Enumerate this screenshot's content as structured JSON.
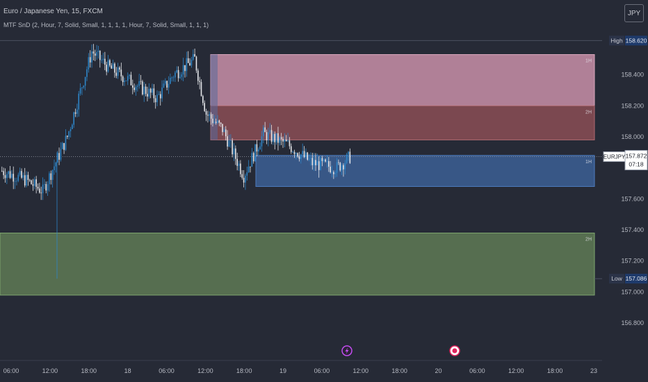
{
  "header": {
    "symbol_title": "Euro / Japanese Yen, 15, FXCM",
    "indicator_title": "MTF SnD (2, Hour, 7, Solid, Small, 1, 1, 1, 1, Hour, 7, Solid, Small, 1, 1, 1)",
    "currency": "JPY"
  },
  "colors": {
    "background": "#262a36",
    "up_candle": "#2e86c9",
    "down_candle": "#e6e8ec",
    "supply_zone_light": "#c98fa8",
    "supply_zone_dark": "#8b4d55",
    "demand_zone_blue": "#3c5f94",
    "demand_zone_green": "#5f7a55"
  },
  "chart_data": {
    "type": "candlestick",
    "y_axis_ticks": [
      158.4,
      158.2,
      158.0,
      157.6,
      157.4,
      157.2,
      157.0,
      156.8
    ],
    "y_axis_labels": [
      "158.400",
      "158.200",
      "158.000",
      "157.600",
      "157.400",
      "157.200",
      "157.000",
      "156.800"
    ],
    "ylim": [
      156.72,
      158.68
    ],
    "x_axis_labels": [
      "06:00",
      "12:00",
      "18:00",
      "18",
      "06:00",
      "12:00",
      "18:00",
      "19",
      "06:00",
      "12:00",
      "18:00",
      "20",
      "06:00",
      "12:00",
      "18:00",
      "23"
    ],
    "high_marker": {
      "label": "High",
      "value": 158.62,
      "text": "158.620"
    },
    "low_marker": {
      "label": "Low",
      "value": 157.086,
      "text": "157.086"
    },
    "last_price": {
      "symbol": "EURJPY",
      "value": 157.872,
      "text": "157.872",
      "countdown": "07:18"
    },
    "zones": [
      {
        "label": "1H",
        "kind": "supply",
        "top": 158.53,
        "bottom": 158.2,
        "start_label": "12:00 (18)"
      },
      {
        "label": "2H",
        "kind": "supply",
        "top": 158.2,
        "bottom": 157.98,
        "start_label": "12:00 (18)"
      },
      {
        "label": "1H",
        "kind": "demand",
        "top": 157.88,
        "bottom": 157.68,
        "start_label": "18:00 (18)"
      },
      {
        "label": "2H",
        "kind": "demand",
        "top": 157.38,
        "bottom": 156.98,
        "start_label": "before 06:00 (17)"
      }
    ],
    "price_path_key_points": [
      {
        "bar": 0,
        "price": 157.78
      },
      {
        "bar": 15,
        "price": 157.72
      },
      {
        "bar": 25,
        "price": 157.65
      },
      {
        "bar": 40,
        "price": 158.0
      },
      {
        "bar": 55,
        "price": 158.55
      },
      {
        "bar": 65,
        "price": 158.45
      },
      {
        "bar": 80,
        "price": 158.35
      },
      {
        "bar": 95,
        "price": 158.25
      },
      {
        "bar": 105,
        "price": 158.4
      },
      {
        "bar": 118,
        "price": 158.5
      },
      {
        "bar": 125,
        "price": 158.15
      },
      {
        "bar": 135,
        "price": 158.05
      },
      {
        "bar": 148,
        "price": 157.75
      },
      {
        "bar": 160,
        "price": 158.02
      },
      {
        "bar": 175,
        "price": 157.95
      },
      {
        "bar": 190,
        "price": 157.83
      },
      {
        "bar": 205,
        "price": 157.8
      },
      {
        "bar": 213,
        "price": 157.87
      }
    ],
    "events": [
      {
        "icon": "lightning-icon",
        "color": "#c24cf0",
        "near": "09:00 (19)"
      },
      {
        "icon": "record-icon",
        "color": "#e0245e",
        "near": "02:00 (20)"
      }
    ]
  }
}
